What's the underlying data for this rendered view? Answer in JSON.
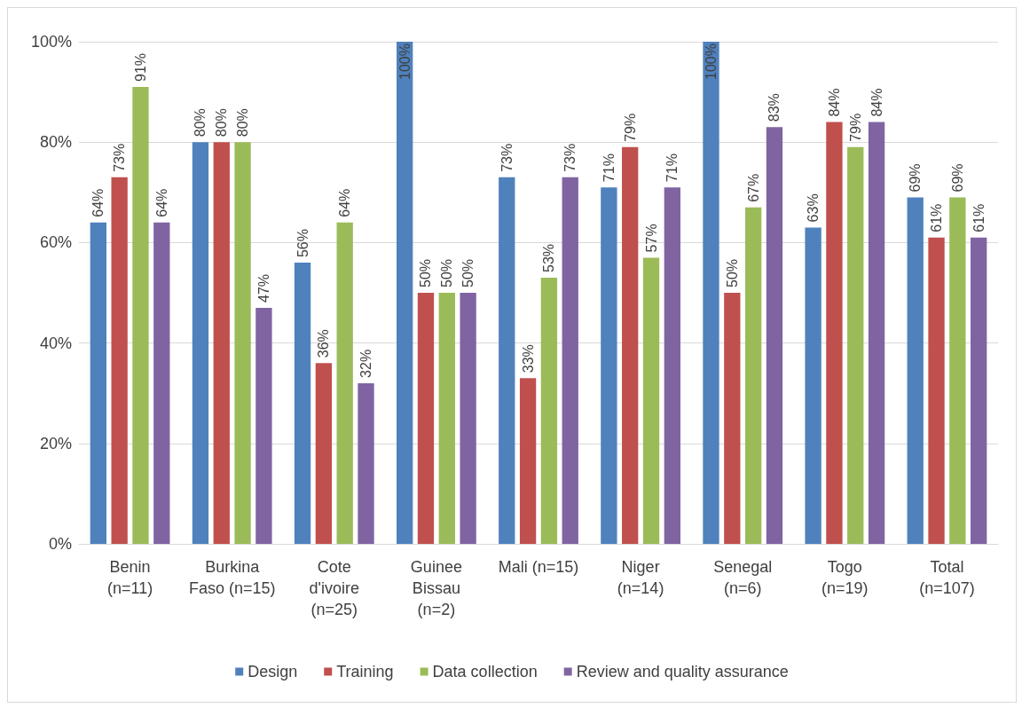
{
  "chart_data": {
    "type": "bar",
    "categories": [
      "Benin\n(n=11)",
      "Burkina\nFaso (n=15)",
      "Cote\nd'ivoire\n(n=25)",
      "Guinee\nBissau\n(n=2)",
      "Mali (n=15)",
      "Niger\n(n=14)",
      "Senegal\n(n=6)",
      "Togo\n(n=19)",
      "Total\n(n=107)"
    ],
    "series": [
      {
        "name": "Design",
        "color": "#4f81bd",
        "values": [
          64,
          80,
          56,
          100,
          73,
          71,
          100,
          63,
          69
        ],
        "value_labels": [
          "64%",
          "80%",
          "56%",
          "100%",
          "73%",
          "71%",
          "100%",
          "63%",
          "69%"
        ]
      },
      {
        "name": "Training",
        "color": "#c0504d",
        "values": [
          73,
          80,
          36,
          50,
          33,
          79,
          50,
          84,
          61
        ],
        "value_labels": [
          "73%",
          "80%",
          "36%",
          "50%",
          "33%",
          "79%",
          "50%",
          "84%",
          "61%"
        ]
      },
      {
        "name": "Data collection",
        "color": "#9bbb59",
        "values": [
          91,
          80,
          64,
          50,
          53,
          57,
          67,
          79,
          69
        ],
        "value_labels": [
          "91%",
          "80%",
          "64%",
          "50%",
          "53%",
          "57%",
          "67%",
          "79%",
          "69%"
        ]
      },
      {
        "name": "Review and quality assurance",
        "color": "#8064a2",
        "values": [
          64,
          47,
          32,
          50,
          73,
          71,
          83,
          84,
          61
        ],
        "value_labels": [
          "64%",
          "47%",
          "32%",
          "50%",
          "73%",
          "71%",
          "83%",
          "84%",
          "61%"
        ]
      }
    ],
    "ylim": [
      0,
      100
    ],
    "yticks": [
      {
        "value": 0,
        "label": "0%"
      },
      {
        "value": 20,
        "label": "20%"
      },
      {
        "value": 40,
        "label": "40%"
      },
      {
        "value": 60,
        "label": "60%"
      },
      {
        "value": 80,
        "label": "80%"
      },
      {
        "value": 100,
        "label": "100%"
      }
    ],
    "grid": "y",
    "legend": "bottom"
  }
}
